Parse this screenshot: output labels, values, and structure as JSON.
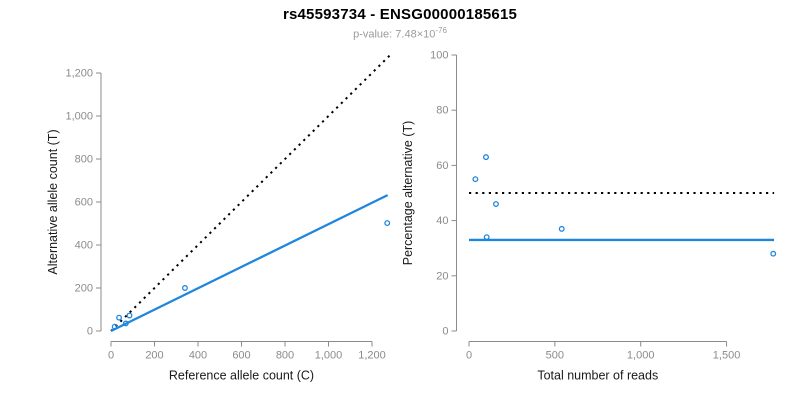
{
  "header": {
    "title": "rs45593734 - ENSG00000185615",
    "pvalue": {
      "prefix": "p-value: ",
      "mantissa": "7.48×10",
      "exponent": "-76"
    }
  },
  "colors": {
    "accent_blue": "#1E86DD",
    "reference_black": "#000000",
    "axis_gray": "#8B8B8B",
    "tick_label_gray": "#8B8B8B",
    "subtitle_gray": "#9B9B9B"
  },
  "chart_data": [
    {
      "name": "allele-count-scatter",
      "type": "scatter",
      "xlabel": "Reference allele count (C)",
      "ylabel": "Alternative allele count (T)",
      "xlim": [
        0,
        1300
      ],
      "ylim": [
        0,
        1300
      ],
      "grid": false,
      "legend": null,
      "xticks": {
        "values": [
          0,
          200,
          400,
          600,
          800,
          1000,
          1200
        ],
        "labels": [
          "0",
          "200",
          "400",
          "600",
          "800",
          "1,000",
          "1,200"
        ]
      },
      "yticks": {
        "values": [
          0,
          200,
          400,
          600,
          800,
          1000,
          1200
        ],
        "labels": [
          "0",
          "200",
          "400",
          "600",
          "800",
          "1,000",
          "1,200"
        ]
      },
      "point_style": "open-circle",
      "point_color": "#1E86DD",
      "points": [
        [
          17,
          20
        ],
        [
          37,
          62
        ],
        [
          68,
          35
        ],
        [
          85,
          72
        ],
        [
          340,
          200
        ],
        [
          1270,
          502
        ]
      ],
      "lines": [
        {
          "name": "identity-line",
          "style": "dotted",
          "color": "#000000",
          "from": [
            0,
            0
          ],
          "to": [
            1283,
            1283
          ]
        },
        {
          "name": "regression-line",
          "style": "solid",
          "color": "#1E86DD",
          "from": [
            0,
            0
          ],
          "to": [
            1272,
            632
          ]
        }
      ]
    },
    {
      "name": "percentage-alternative-scatter",
      "type": "scatter",
      "xlabel": "Total number of reads",
      "ylabel": "Percentage alternative (T)",
      "xlim": [
        0,
        1800
      ],
      "ylim": [
        0,
        100
      ],
      "grid": false,
      "legend": null,
      "xticks": {
        "values": [
          0,
          500,
          1000,
          1500
        ],
        "labels": [
          "0",
          "500",
          "1,000",
          "1,500"
        ]
      },
      "yticks": {
        "values": [
          0,
          20,
          40,
          60,
          80,
          100
        ],
        "labels": [
          "0",
          "20",
          "40",
          "60",
          "80",
          "100"
        ]
      },
      "point_style": "open-circle",
      "point_color": "#1E86DD",
      "points": [
        [
          37,
          55
        ],
        [
          99,
          63
        ],
        [
          103,
          34
        ],
        [
          157,
          46
        ],
        [
          540,
          37
        ],
        [
          1772,
          28
        ]
      ],
      "lines": [
        {
          "name": "expected-50-percent-line",
          "style": "dotted",
          "color": "#000000",
          "from": [
            0,
            50
          ],
          "to": [
            1777,
            50
          ]
        },
        {
          "name": "mean-percentage-line",
          "style": "solid",
          "color": "#1E86DD",
          "from": [
            0,
            33
          ],
          "to": [
            1777,
            33
          ]
        }
      ]
    }
  ]
}
